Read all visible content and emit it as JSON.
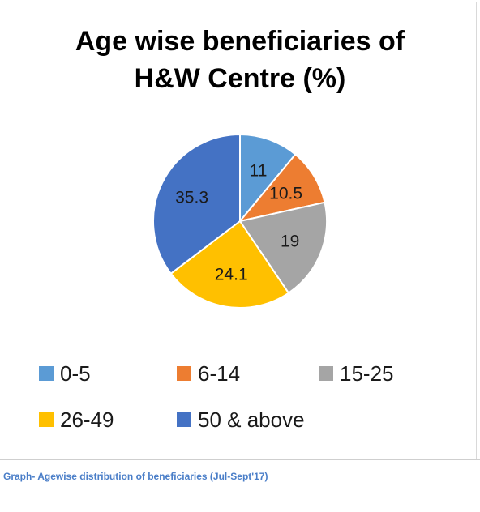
{
  "chart_data": {
    "type": "pie",
    "title_lines": [
      "Age wise beneficiaries of",
      "H&W Centre (%)"
    ],
    "categories": [
      "0-5",
      "6-14",
      "15-25",
      "26-49",
      "50 & above"
    ],
    "values": [
      11,
      10.5,
      19,
      24.1,
      35.3
    ],
    "data_labels": [
      "11",
      "10.5",
      "19",
      "24.1",
      "35.3"
    ],
    "colors": [
      "#5b9bd5",
      "#ed7d31",
      "#a5a5a5",
      "#ffc000",
      "#4472c4"
    ],
    "legend_position": "bottom"
  },
  "caption": "Graph- Agewise distribution of beneficiaries (Jul-Sept'17)"
}
